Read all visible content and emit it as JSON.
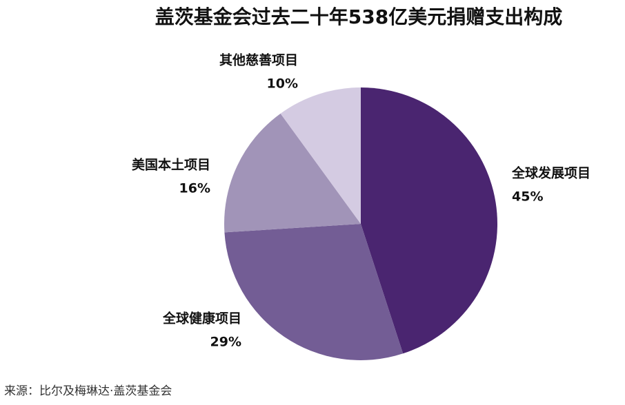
{
  "chart_data": {
    "type": "pie",
    "title": "盖茨基金会过去二十年538亿美元捐赠支出构成",
    "categories": [
      "全球发展项目",
      "全球健康项目",
      "美国本土项目",
      "其他慈善项目"
    ],
    "values": [
      45,
      29,
      16,
      10
    ],
    "value_labels": [
      "45%",
      "29%",
      "16%",
      "10%"
    ],
    "colors": [
      "#4a2570",
      "#735d95",
      "#a194b8",
      "#d4cbe2"
    ],
    "source": "来源：比尔及梅琳达·盖茨基金会"
  }
}
